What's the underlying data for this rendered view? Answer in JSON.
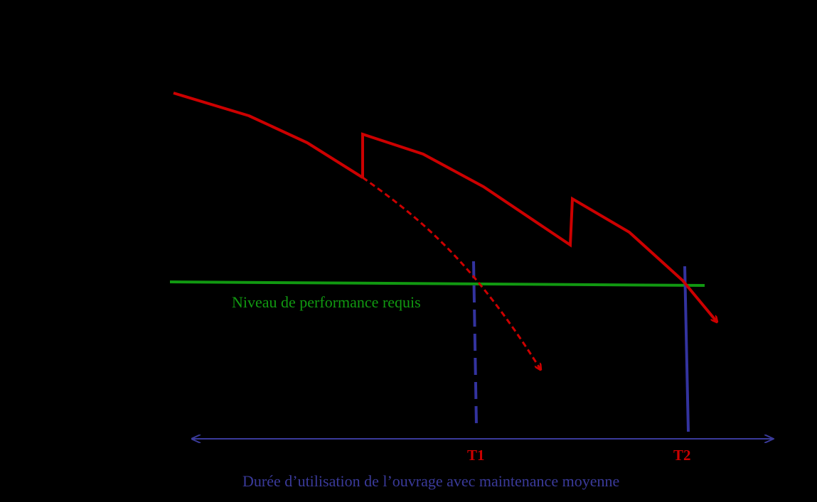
{
  "labels": {
    "performance_level": "Niveau de performance requis",
    "t1": "T1",
    "t2": "T2",
    "duration": "Durée d’utilisation de l’ouvrage avec maintenance moyenne"
  },
  "colors": {
    "background": "#000000",
    "degradation_curve": "#cc0000",
    "performance_line": "#119911",
    "time_markers": "#33339f",
    "timeline_axis": "#3a3a9a",
    "t_labels": "#cc0000",
    "duration_label": "#3a3a9a",
    "performance_label": "#119911"
  }
}
